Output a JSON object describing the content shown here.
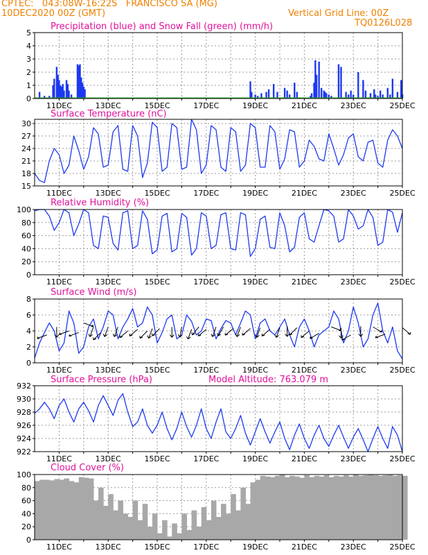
{
  "header": {
    "line1_left": "CPTEC:   043:08W-16:22S   FRANCISCO SA (MG)",
    "line2_left": "10DEC2020 00Z (GMT)",
    "line2_right": "Vertical Grid Line: 00Z",
    "line3_right": "TQ0126L028",
    "color": "#f08000",
    "title_color": "#e0119b"
  },
  "x_tick_labels": [
    "11DEC",
    "13DEC",
    "15DEC",
    "17DEC",
    "19DEC",
    "21DEC",
    "23DEC",
    "25DEC"
  ],
  "chart_data": [
    {
      "type": "bar",
      "title": "Precipitation (blue) and Snow Fall (green) (mm/h)",
      "ylim": [
        0,
        5
      ],
      "yticks": [
        "0",
        "1",
        "2",
        "3",
        "4",
        "5"
      ],
      "series": [
        {
          "name": "blue",
          "color": "#1d39f0",
          "x": [
            0.2,
            0.4,
            0.6,
            0.75,
            0.8,
            0.9,
            0.95,
            1.0,
            1.05,
            1.1,
            1.15,
            1.2,
            1.3,
            1.35,
            1.4,
            1.5,
            1.75,
            1.8,
            1.85,
            1.9,
            1.95,
            2.0,
            2.05,
            8.8,
            8.85,
            9.0,
            9.1,
            9.25,
            9.45,
            9.55,
            9.75,
            9.9,
            10.2,
            10.3,
            10.4,
            10.6,
            10.7,
            11.25,
            11.3,
            11.4,
            11.45,
            11.5,
            11.6,
            11.7,
            11.8,
            11.85,
            11.9,
            12.0,
            12.1,
            12.4,
            12.5,
            12.7,
            12.8,
            12.9,
            13.0,
            13.2,
            13.4,
            13.5,
            13.7,
            13.85,
            13.9,
            14.0,
            14.1,
            14.2,
            14.4,
            14.5,
            14.6,
            14.8,
            14.95,
            15.0
          ],
          "values": [
            0.5,
            0.2,
            0.2,
            1.0,
            1.5,
            2.4,
            1.8,
            1.4,
            1.0,
            0.9,
            1.1,
            0.6,
            1.4,
            1.1,
            0.6,
            0.3,
            2.6,
            2.5,
            2.6,
            1.6,
            1.2,
            0.9,
            0.7,
            1.3,
            0.5,
            0.3,
            0.2,
            0.4,
            0.5,
            0.7,
            1.1,
            0.5,
            0.8,
            0.6,
            0.3,
            1.2,
            0.5,
            0.2,
            0.4,
            1.2,
            2.9,
            1.8,
            2.8,
            0.8,
            0.6,
            0.5,
            0.4,
            0.3,
            0.2,
            2.6,
            2.4,
            0.5,
            0.3,
            0.6,
            0.3,
            2.0,
            1.4,
            0.6,
            0.4,
            0.7,
            0.3,
            0.2,
            0.6,
            0.3,
            0.8,
            0.3,
            1.5,
            0.5,
            1.4,
            0.3
          ]
        },
        {
          "name": "green",
          "color": "#2faa2f",
          "values": []
        }
      ]
    },
    {
      "type": "line",
      "title": "Surface Temperature (nC)",
      "ylim": [
        15,
        31
      ],
      "yticks": [
        "15",
        "18",
        "21",
        "24",
        "27",
        "30"
      ],
      "color": "#1d39f0",
      "x": [
        0,
        0.2,
        0.4,
        0.6,
        0.8,
        1.0,
        1.2,
        1.4,
        1.6,
        1.8,
        2.0,
        2.2,
        2.4,
        2.6,
        2.8,
        3.0,
        3.2,
        3.4,
        3.6,
        3.8,
        4.0,
        4.2,
        4.4,
        4.6,
        4.8,
        5.0,
        5.2,
        5.4,
        5.6,
        5.8,
        6.0,
        6.2,
        6.4,
        6.6,
        6.8,
        7.0,
        7.2,
        7.4,
        7.6,
        7.8,
        8.0,
        8.2,
        8.4,
        8.6,
        8.8,
        9.0,
        9.2,
        9.4,
        9.6,
        9.8,
        10.0,
        10.2,
        10.4,
        10.6,
        10.8,
        11.0,
        11.2,
        11.4,
        11.6,
        11.8,
        12.0,
        12.2,
        12.4,
        12.6,
        12.8,
        13.0,
        13.2,
        13.4,
        13.6,
        13.8,
        14.0,
        14.2,
        14.4,
        14.6,
        14.8,
        15.0
      ],
      "y": [
        18.0,
        16.3,
        15.8,
        21.0,
        24.0,
        22.5,
        18.0,
        20.0,
        27.0,
        23.5,
        19.0,
        22.0,
        29.0,
        27.5,
        19.5,
        20.0,
        28.0,
        29.5,
        19.0,
        18.5,
        29.5,
        27.0,
        17.0,
        20.5,
        30.3,
        29.0,
        18.5,
        19.5,
        30.0,
        29.0,
        19.0,
        19.5,
        31.0,
        28.5,
        18.0,
        20.0,
        29.5,
        28.5,
        19.5,
        18.5,
        29.0,
        28.0,
        18.5,
        20.0,
        30.0,
        29.0,
        19.5,
        19.5,
        29.5,
        28.0,
        19.0,
        21.5,
        28.5,
        28.0,
        19.5,
        21.0,
        26.0,
        24.5,
        21.5,
        21.0,
        27.5,
        24.0,
        20.0,
        22.5,
        26.5,
        27.5,
        22.0,
        21.0,
        25.5,
        26.0,
        20.5,
        19.5,
        26.0,
        28.5,
        27.0,
        24.0
      ]
    },
    {
      "type": "line",
      "title": "Relative Humidity (%)",
      "ylim": [
        0,
        100
      ],
      "yticks": [
        "0",
        "20",
        "40",
        "60",
        "80",
        "100"
      ],
      "color": "#1d39f0",
      "x": [
        0,
        0.2,
        0.4,
        0.6,
        0.8,
        1.0,
        1.2,
        1.4,
        1.6,
        1.8,
        2.0,
        2.2,
        2.4,
        2.6,
        2.8,
        3.0,
        3.2,
        3.4,
        3.6,
        3.8,
        4.0,
        4.2,
        4.4,
        4.6,
        4.8,
        5.0,
        5.2,
        5.4,
        5.6,
        5.8,
        6.0,
        6.2,
        6.4,
        6.6,
        6.8,
        7.0,
        7.2,
        7.4,
        7.6,
        7.8,
        8.0,
        8.2,
        8.4,
        8.6,
        8.8,
        9.0,
        9.2,
        9.4,
        9.6,
        9.8,
        10.0,
        10.2,
        10.4,
        10.6,
        10.8,
        11.0,
        11.2,
        11.4,
        11.6,
        11.8,
        12.0,
        12.2,
        12.4,
        12.6,
        12.8,
        13.0,
        13.2,
        13.4,
        13.6,
        13.8,
        14.0,
        14.2,
        14.4,
        14.6,
        14.8,
        15.0
      ],
      "y": [
        98,
        100,
        100,
        90,
        68,
        80,
        100,
        95,
        60,
        78,
        100,
        95,
        45,
        40,
        90,
        88,
        48,
        38,
        95,
        98,
        40,
        45,
        98,
        85,
        32,
        38,
        90,
        94,
        35,
        40,
        94,
        88,
        30,
        40,
        95,
        90,
        40,
        45,
        92,
        95,
        40,
        38,
        95,
        92,
        28,
        40,
        85,
        90,
        42,
        40,
        95,
        75,
        35,
        42,
        88,
        95,
        55,
        50,
        75,
        100,
        98,
        90,
        50,
        55,
        100,
        90,
        70,
        75,
        100,
        88,
        45,
        50,
        100,
        96,
        65,
        95
      ]
    },
    {
      "type": "line",
      "title": "Surface Wind (m/s)",
      "ylim": [
        0,
        8
      ],
      "yticks": [
        "0",
        "2",
        "4",
        "6",
        "8"
      ],
      "color": "#1d39f0",
      "arrow_color": "#000000",
      "x": [
        0,
        0.2,
        0.4,
        0.6,
        0.8,
        1.0,
        1.2,
        1.4,
        1.6,
        1.8,
        2.0,
        2.2,
        2.4,
        2.6,
        2.8,
        3.0,
        3.2,
        3.4,
        3.6,
        3.8,
        4.0,
        4.2,
        4.4,
        4.6,
        4.8,
        5.0,
        5.2,
        5.4,
        5.6,
        5.8,
        6.0,
        6.2,
        6.4,
        6.6,
        6.8,
        7.0,
        7.2,
        7.4,
        7.6,
        7.8,
        8.0,
        8.2,
        8.4,
        8.6,
        8.8,
        9.0,
        9.2,
        9.4,
        9.6,
        9.8,
        10.0,
        10.2,
        10.4,
        10.6,
        10.8,
        11.0,
        11.2,
        11.4,
        11.6,
        11.8,
        12.0,
        12.2,
        12.4,
        12.6,
        12.8,
        13.0,
        13.2,
        13.4,
        13.6,
        13.8,
        14.0,
        14.2,
        14.4,
        14.6,
        14.8,
        15.0
      ],
      "y": [
        0.6,
        2.5,
        3.8,
        5.0,
        4.0,
        1.5,
        2.5,
        6.5,
        5.0,
        1.2,
        2.0,
        4.5,
        5.5,
        3.0,
        4.5,
        6.5,
        6.0,
        3.0,
        4.5,
        5.5,
        6.8,
        4.5,
        5.0,
        7.0,
        6.0,
        2.5,
        3.8,
        5.5,
        6.0,
        3.0,
        3.5,
        6.0,
        5.2,
        3.5,
        4.0,
        5.5,
        5.3,
        3.0,
        4.3,
        5.3,
        5.0,
        3.5,
        5.0,
        6.5,
        6.0,
        3.0,
        5.0,
        5.5,
        4.0,
        3.5,
        4.5,
        5.5,
        3.5,
        2.0,
        4.5,
        5.5,
        4.0,
        2.0,
        3.5,
        4.0,
        4.5,
        6.5,
        5.5,
        2.5,
        4.0,
        7.0,
        5.0,
        2.0,
        3.0,
        6.0,
        7.5,
        4.0,
        2.5,
        4.5,
        1.5,
        0.5
      ],
      "arrows": [
        [
          0.5,
          3.5,
          200
        ],
        [
          0.9,
          4.5,
          270
        ],
        [
          1.4,
          4.0,
          200
        ],
        [
          1.8,
          3.8,
          200
        ],
        [
          2.0,
          5.0,
          340
        ],
        [
          2.4,
          4.5,
          250
        ],
        [
          2.7,
          3.8,
          225
        ],
        [
          3.0,
          4.5,
          250
        ],
        [
          3.4,
          4.5,
          250
        ],
        [
          3.8,
          4.0,
          220
        ],
        [
          4.2,
          4.2,
          220
        ],
        [
          4.6,
          4.0,
          225
        ],
        [
          4.8,
          4.3,
          250
        ],
        [
          5.1,
          4.3,
          225
        ],
        [
          5.6,
          4.5,
          270
        ],
        [
          6.0,
          4.5,
          260
        ],
        [
          6.4,
          4.2,
          250
        ],
        [
          6.7,
          4.5,
          230
        ],
        [
          7.0,
          4.2,
          220
        ],
        [
          7.4,
          4.5,
          250
        ],
        [
          7.7,
          4.5,
          240
        ],
        [
          8.1,
          4.3,
          220
        ],
        [
          8.4,
          4.5,
          250
        ],
        [
          8.8,
          4.3,
          220
        ],
        [
          9.2,
          4.4,
          250
        ],
        [
          9.6,
          4.2,
          220
        ],
        [
          10.0,
          4.4,
          250
        ],
        [
          10.3,
          4.6,
          270
        ],
        [
          10.7,
          4.4,
          225
        ],
        [
          11.2,
          4.0,
          220
        ],
        [
          11.6,
          3.7,
          210
        ],
        [
          12.1,
          4.5,
          340
        ],
        [
          12.5,
          4.4,
          270
        ],
        [
          12.9,
          3.5,
          210
        ],
        [
          13.3,
          4.6,
          270
        ],
        [
          13.8,
          4.5,
          330
        ],
        [
          14.3,
          3.6,
          200
        ],
        [
          15.0,
          4.4,
          320
        ]
      ]
    },
    {
      "type": "line",
      "title": "Surface Pressure (hPa)",
      "annotation": "Model Altitude: 763.079  m",
      "ylim": [
        922,
        932
      ],
      "yticks": [
        "922",
        "924",
        "926",
        "928",
        "930",
        "932"
      ],
      "color": "#1d39f0",
      "x": [
        0,
        0.2,
        0.4,
        0.6,
        0.8,
        1.0,
        1.2,
        1.4,
        1.6,
        1.8,
        2.0,
        2.2,
        2.4,
        2.6,
        2.8,
        3.0,
        3.2,
        3.4,
        3.6,
        3.8,
        4.0,
        4.2,
        4.4,
        4.6,
        4.8,
        5.0,
        5.2,
        5.4,
        5.6,
        5.8,
        6.0,
        6.2,
        6.4,
        6.6,
        6.8,
        7.0,
        7.2,
        7.4,
        7.6,
        7.8,
        8.0,
        8.2,
        8.4,
        8.6,
        8.8,
        9.0,
        9.2,
        9.4,
        9.6,
        9.8,
        10.0,
        10.2,
        10.4,
        10.6,
        10.8,
        11.0,
        11.2,
        11.4,
        11.6,
        11.8,
        12.0,
        12.2,
        12.4,
        12.6,
        12.8,
        13.0,
        13.2,
        13.4,
        13.6,
        13.8,
        14.0,
        14.2,
        14.4,
        14.6,
        14.8,
        15.0
      ],
      "y": [
        927.8,
        928.5,
        929.5,
        928.5,
        927.0,
        929.0,
        930.0,
        928.0,
        926.5,
        928.5,
        929.5,
        928.2,
        926.5,
        929.0,
        930.5,
        929.0,
        927.5,
        929.8,
        930.8,
        928.0,
        925.8,
        926.5,
        928.5,
        926.0,
        924.8,
        926.0,
        928.0,
        925.5,
        923.8,
        925.5,
        928.0,
        925.8,
        924.2,
        926.0,
        928.5,
        925.5,
        924.0,
        926.5,
        928.5,
        925.0,
        924.0,
        925.5,
        927.5,
        924.8,
        923.0,
        925.0,
        927.0,
        925.0,
        923.3,
        925.0,
        926.5,
        924.0,
        922.3,
        924.5,
        926.2,
        924.0,
        922.5,
        924.5,
        926.0,
        924.0,
        922.8,
        924.5,
        926.0,
        924.2,
        922.5,
        924.2,
        925.5,
        923.8,
        922.0,
        924.0,
        925.8,
        924.0,
        922.5,
        925.8,
        924.5,
        922.0
      ]
    },
    {
      "type": "bar",
      "title": "Cloud Cover (%)",
      "ylim": [
        0,
        100
      ],
      "yticks": [
        "0",
        "20",
        "40",
        "60",
        "80",
        "100"
      ],
      "color": "#a8a8a8",
      "x": [
        0,
        0.2,
        0.4,
        0.6,
        0.8,
        1.0,
        1.2,
        1.4,
        1.6,
        1.8,
        2.0,
        2.2,
        2.4,
        2.6,
        2.8,
        3.0,
        3.2,
        3.4,
        3.6,
        3.8,
        4.0,
        4.2,
        4.4,
        4.6,
        4.8,
        5.0,
        5.2,
        5.4,
        5.6,
        5.8,
        6.0,
        6.2,
        6.4,
        6.6,
        6.8,
        7.0,
        7.2,
        7.4,
        7.6,
        7.8,
        8.0,
        8.2,
        8.4,
        8.6,
        8.8,
        9.0,
        9.2,
        9.4,
        9.6,
        9.8,
        10.0,
        10.2,
        10.4,
        10.6,
        10.8,
        11.0,
        11.2,
        11.4,
        11.6,
        11.8,
        12.0,
        12.2,
        12.4,
        12.6,
        12.8,
        13.0,
        13.2,
        13.4,
        13.6,
        13.8,
        14.0,
        14.2,
        14.4,
        14.6,
        14.8,
        15.0
      ],
      "values": [
        90,
        92,
        92,
        91,
        93,
        92,
        94,
        90,
        88,
        96,
        95,
        94,
        60,
        80,
        52,
        70,
        45,
        60,
        40,
        35,
        60,
        30,
        55,
        20,
        40,
        10,
        30,
        5,
        25,
        10,
        40,
        15,
        45,
        20,
        50,
        30,
        60,
        35,
        55,
        40,
        70,
        45,
        80,
        55,
        88,
        92,
        98,
        97,
        96,
        98,
        100,
        96,
        98,
        97,
        95,
        99,
        96,
        98,
        97,
        99,
        96,
        98,
        97,
        99,
        97,
        100,
        98,
        99,
        100,
        99,
        98,
        99,
        100,
        98,
        99,
        98
      ]
    }
  ]
}
